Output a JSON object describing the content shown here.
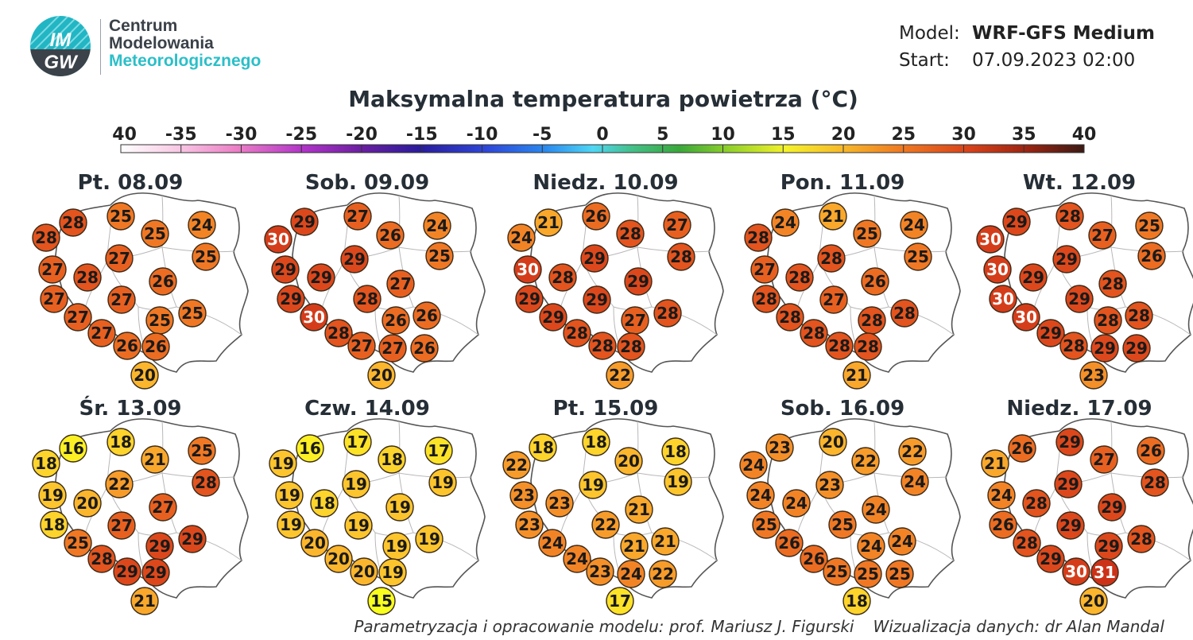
{
  "logo": {
    "badge_top": "IM",
    "badge_bottom": "GW",
    "line1": "Centrum",
    "line2": "Modelowania",
    "line3": "Meteorologicznego"
  },
  "model": {
    "model_label": "Model:",
    "model_value": "WRF-GFS Medium",
    "start_label": "Start:",
    "start_value": "07.09.2023 02:00"
  },
  "title": "Maksymalna temperatura powietrza (°C)",
  "scale": {
    "ticks": [
      "-40",
      "-35",
      "-30",
      "-25",
      "-20",
      "-15",
      "-10",
      "-5",
      "0",
      "5",
      "10",
      "15",
      "20",
      "25",
      "30",
      "35",
      "40"
    ],
    "min": -40,
    "max": 40
  },
  "days": [
    {
      "title": "Pt. 08.09",
      "values": [
        28,
        28,
        25,
        25,
        24,
        25,
        27,
        28,
        27,
        26,
        27,
        27,
        25,
        25,
        27,
        27,
        26,
        26,
        20
      ]
    },
    {
      "title": "Sob. 09.09",
      "values": [
        30,
        29,
        27,
        26,
        24,
        25,
        29,
        29,
        29,
        27,
        29,
        28,
        26,
        26,
        30,
        28,
        27,
        27,
        26,
        20
      ]
    },
    {
      "title": "Niedz. 10.09",
      "values": [
        24,
        21,
        26,
        28,
        27,
        28,
        30,
        28,
        29,
        29,
        29,
        29,
        27,
        28,
        29,
        28,
        28,
        28,
        22
      ]
    },
    {
      "title": "Pon. 11.09",
      "values": [
        28,
        24,
        21,
        25,
        24,
        25,
        27,
        28,
        28,
        26,
        28,
        27,
        28,
        28,
        28,
        28,
        28,
        28,
        21
      ]
    },
    {
      "title": "Wt. 12.09",
      "values": [
        30,
        29,
        28,
        27,
        25,
        26,
        30,
        29,
        29,
        28,
        30,
        29,
        28,
        28,
        30,
        29,
        28,
        29,
        29,
        23
      ]
    },
    {
      "title": "Śr. 13.09",
      "values": [
        18,
        16,
        18,
        21,
        25,
        28,
        19,
        20,
        22,
        27,
        18,
        27,
        29,
        29,
        25,
        28,
        29,
        29,
        21
      ]
    },
    {
      "title": "Czw. 14.09",
      "values": [
        19,
        16,
        17,
        18,
        17,
        19,
        19,
        18,
        19,
        19,
        19,
        19,
        19,
        19,
        20,
        20,
        20,
        19,
        15
      ]
    },
    {
      "title": "Pt. 15.09",
      "values": [
        22,
        18,
        18,
        20,
        18,
        19,
        23,
        23,
        19,
        21,
        23,
        22,
        21,
        21,
        24,
        24,
        23,
        24,
        22,
        17
      ]
    },
    {
      "title": "Sob. 16.09",
      "values": [
        24,
        23,
        20,
        22,
        22,
        24,
        24,
        24,
        23,
        24,
        25,
        25,
        24,
        24,
        26,
        26,
        25,
        25,
        25,
        18
      ]
    },
    {
      "title": "Niedz. 17.09",
      "values": [
        21,
        26,
        29,
        27,
        26,
        28,
        24,
        28,
        29,
        29,
        26,
        29,
        29,
        28,
        28,
        29,
        30,
        31,
        20
      ]
    }
  ],
  "colors": {
    "t15": "#f8ff1f",
    "t16": "#fbf024",
    "t17": "#fde328",
    "t18": "#fdd42b",
    "t19": "#fcc52d",
    "t20": "#fbb62d",
    "t21": "#f9a82c",
    "t22": "#f79c2a",
    "t23": "#f59028",
    "t24": "#f38426",
    "t25": "#f07824",
    "t26": "#ec6c22",
    "t27": "#e86020",
    "t28": "#e3541e",
    "t29": "#dc481c",
    "t30": "#d53d1a",
    "t31": "#cc3218"
  },
  "credits": {
    "param": "Parametryzacja i opracowanie modelu: prof. Mariusz J. Figurski",
    "viz": "Wizualizacja danych: dr Alan Mandal"
  }
}
